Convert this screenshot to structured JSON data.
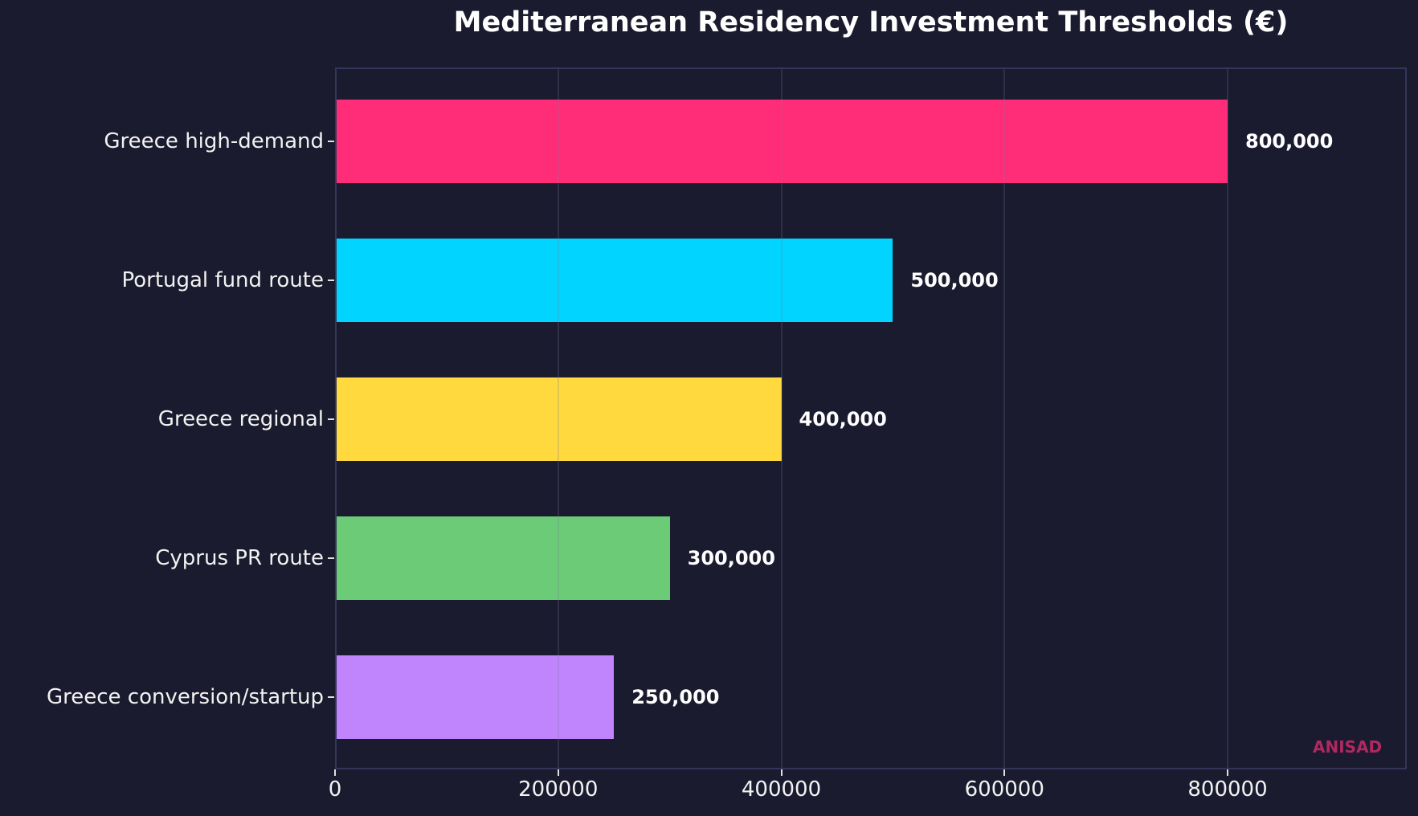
{
  "title": "Mediterranean Residency Investment Thresholds (€)",
  "watermark": "ANISAD",
  "bars": [
    {
      "label": "Greece high-demand",
      "value": 800000,
      "value_label": "800,000",
      "color": "#ff2d78"
    },
    {
      "label": "Portugal fund route",
      "value": 500000,
      "value_label": "500,000",
      "color": "#00d4ff"
    },
    {
      "label": "Greece regional",
      "value": 400000,
      "value_label": "400,000",
      "color": "#ffd93d"
    },
    {
      "label": "Cyprus PR route",
      "value": 300000,
      "value_label": "300,000",
      "color": "#6bcb77"
    },
    {
      "label": "Greece conversion/startup",
      "value": 250000,
      "value_label": "250,000",
      "color": "#c084fc"
    }
  ],
  "xaxis": {
    "ticks": [
      {
        "value": 0,
        "label": "0"
      },
      {
        "value": 200000,
        "label": "200000"
      },
      {
        "value": 400000,
        "label": "400000"
      },
      {
        "value": 600000,
        "label": "600000"
      },
      {
        "value": 800000,
        "label": "800000"
      }
    ]
  },
  "chart_data": {
    "type": "bar",
    "orientation": "horizontal",
    "title": "Mediterranean Residency Investment Thresholds (€)",
    "categories": [
      "Greece high-demand",
      "Portugal fund route",
      "Greece regional",
      "Cyprus PR route",
      "Greece conversion/startup"
    ],
    "values": [
      800000,
      500000,
      400000,
      300000,
      250000
    ],
    "colors": [
      "#ff2d78",
      "#00d4ff",
      "#ffd93d",
      "#6bcb77",
      "#c084fc"
    ],
    "data_labels": [
      "800,000",
      "500,000",
      "400,000",
      "300,000",
      "250,000"
    ],
    "xlabel": "",
    "ylabel": "",
    "xlim": [
      0,
      960000
    ],
    "xticks": [
      0,
      200000,
      400000,
      600000,
      800000
    ],
    "grid": "vertical",
    "legend": "none",
    "annotations": [
      "ANISAD"
    ]
  }
}
